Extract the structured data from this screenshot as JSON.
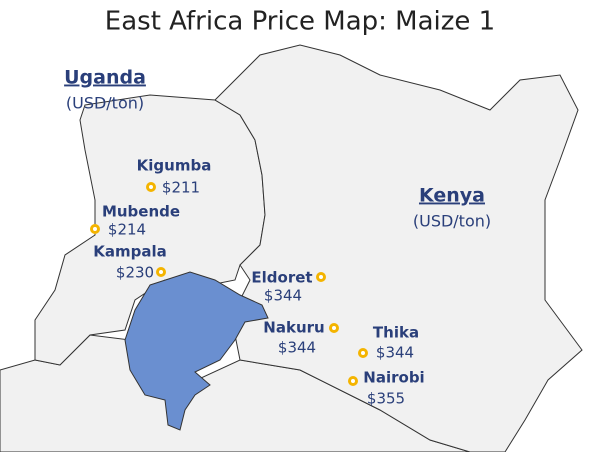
{
  "header": {
    "title": "East Africa Price Map: Maize 1"
  },
  "countries": [
    {
      "name": "Uganda",
      "unit": "(USD/ton)"
    },
    {
      "name": "Kenya",
      "unit": "(USD/ton)"
    }
  ],
  "markets": [
    {
      "name": "Kigumba",
      "price": "$211"
    },
    {
      "name": "Mubende",
      "price": "$214"
    },
    {
      "name": "Kampala",
      "price": "$230"
    },
    {
      "name": "Eldoret",
      "price": "$344"
    },
    {
      "name": "Nakuru",
      "price": "$344"
    },
    {
      "name": "Thika",
      "price": "$344"
    },
    {
      "name": "Nairobi",
      "price": "$355"
    }
  ]
}
